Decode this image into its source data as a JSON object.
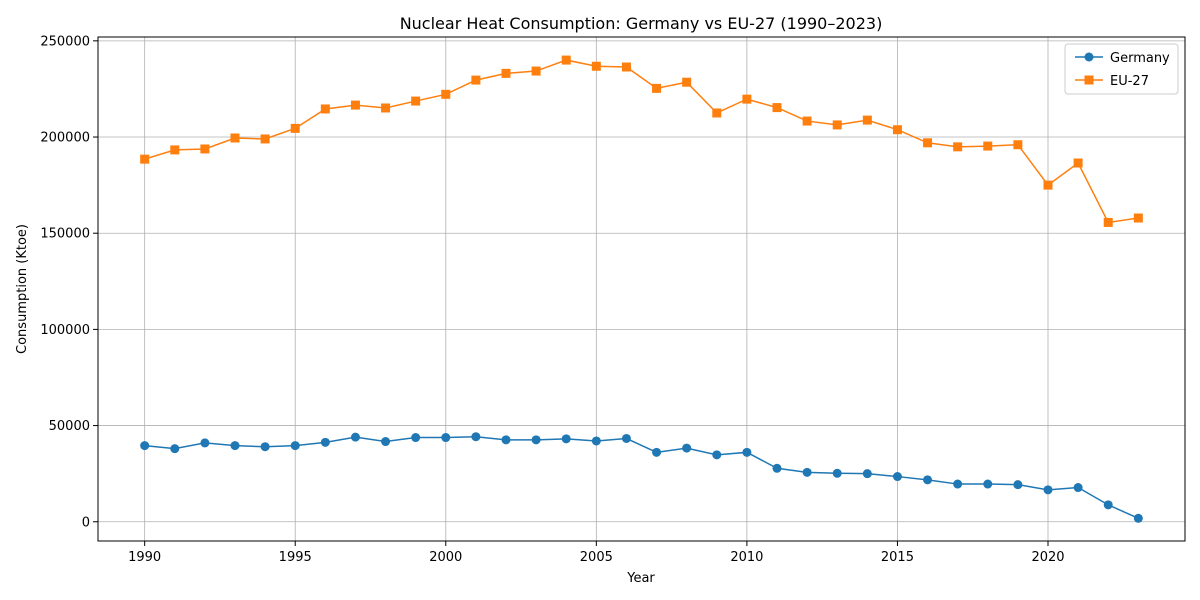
{
  "chart_data": {
    "type": "line",
    "title": "Nuclear Heat Consumption: Germany vs EU-27 (1990–2023)",
    "xlabel": "Year",
    "ylabel": "Consumption (Ktoe)",
    "xlim": [
      1988.45,
      2024.55
    ],
    "ylim": [
      -10000,
      252000
    ],
    "xticks": [
      1990,
      1995,
      2000,
      2005,
      2010,
      2015,
      2020
    ],
    "yticks": [
      0,
      50000,
      100000,
      150000,
      200000,
      250000
    ],
    "grid": true,
    "legend_position": "top-right",
    "x": [
      1990,
      1991,
      1992,
      1993,
      1994,
      1995,
      1996,
      1997,
      1998,
      1999,
      2000,
      2001,
      2002,
      2003,
      2004,
      2005,
      2006,
      2007,
      2008,
      2009,
      2010,
      2011,
      2012,
      2013,
      2014,
      2015,
      2016,
      2017,
      2018,
      2019,
      2020,
      2021,
      2022,
      2023
    ],
    "series": [
      {
        "name": "Germany",
        "color": "#1f77b4",
        "marker": "circle",
        "values": [
          39600,
          38000,
          41000,
          39600,
          39000,
          39600,
          41300,
          44000,
          41700,
          43800,
          43800,
          44200,
          42600,
          42600,
          43100,
          42000,
          43300,
          36100,
          38300,
          34800,
          36100,
          27800,
          25700,
          25200,
          25000,
          23500,
          21800,
          19600,
          19600,
          19300,
          16600,
          17800,
          8800,
          1800
        ]
      },
      {
        "name": "EU-27",
        "color": "#ff7f0e",
        "marker": "square",
        "values": [
          188500,
          193300,
          193800,
          199500,
          199000,
          204500,
          214600,
          216600,
          215100,
          218700,
          222200,
          229600,
          233100,
          234300,
          240000,
          236800,
          236400,
          225300,
          228500,
          212500,
          219700,
          215300,
          208300,
          206300,
          208800,
          203800,
          197000,
          194900,
          195300,
          196000,
          175000,
          186500,
          155600,
          157900
        ]
      }
    ]
  }
}
